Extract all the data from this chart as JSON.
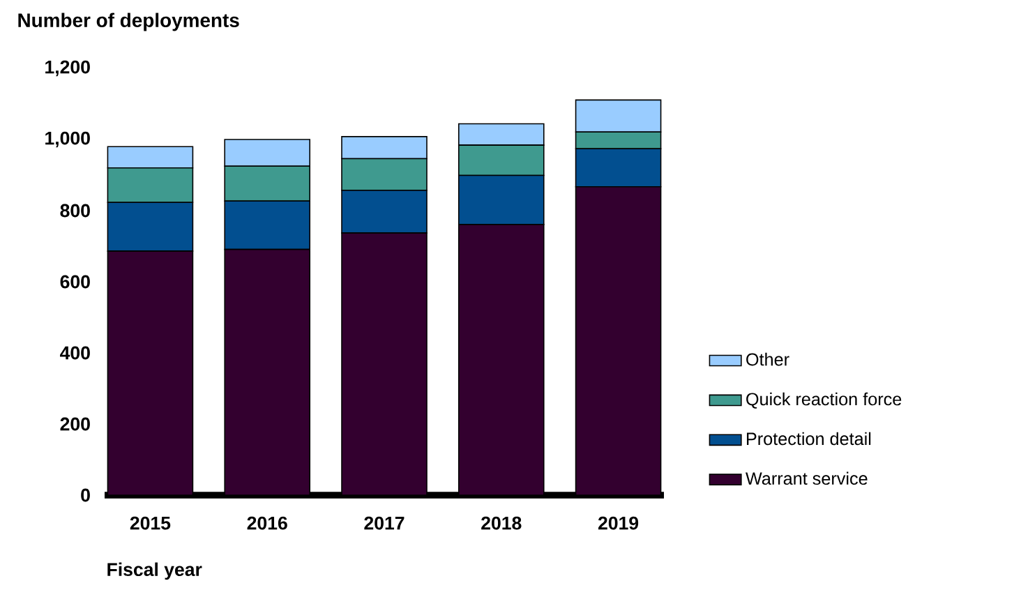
{
  "chart_data": {
    "type": "bar",
    "stacked": true,
    "title": "Number of deployments",
    "xlabel": "Fiscal year",
    "categories": [
      "2015",
      "2016",
      "2017",
      "2018",
      "2019"
    ],
    "series": [
      {
        "name": "Warrant service",
        "color": "#33002f",
        "values": [
          686,
          691,
          737,
          761,
          867
        ]
      },
      {
        "name": "Protection detail",
        "color": "#024f90",
        "values": [
          137,
          136,
          120,
          138,
          107
        ]
      },
      {
        "name": "Quick reaction force",
        "color": "#3f9a8f",
        "values": [
          97,
          98,
          89,
          85,
          47
        ]
      },
      {
        "name": "Other",
        "color": "#99ccff",
        "values": [
          60,
          75,
          62,
          60,
          90
        ]
      }
    ],
    "ylim": [
      0,
      1200
    ],
    "yticks": [
      0,
      {
        "value": 200,
        "label": "200"
      },
      {
        "value": 400,
        "label": "400"
      },
      {
        "value": 600,
        "label": "600"
      },
      {
        "value": 800,
        "label": "800"
      },
      {
        "value": 1000,
        "label": "1,000"
      },
      {
        "value": 1200,
        "label": "1,200"
      }
    ],
    "legend": "right"
  }
}
